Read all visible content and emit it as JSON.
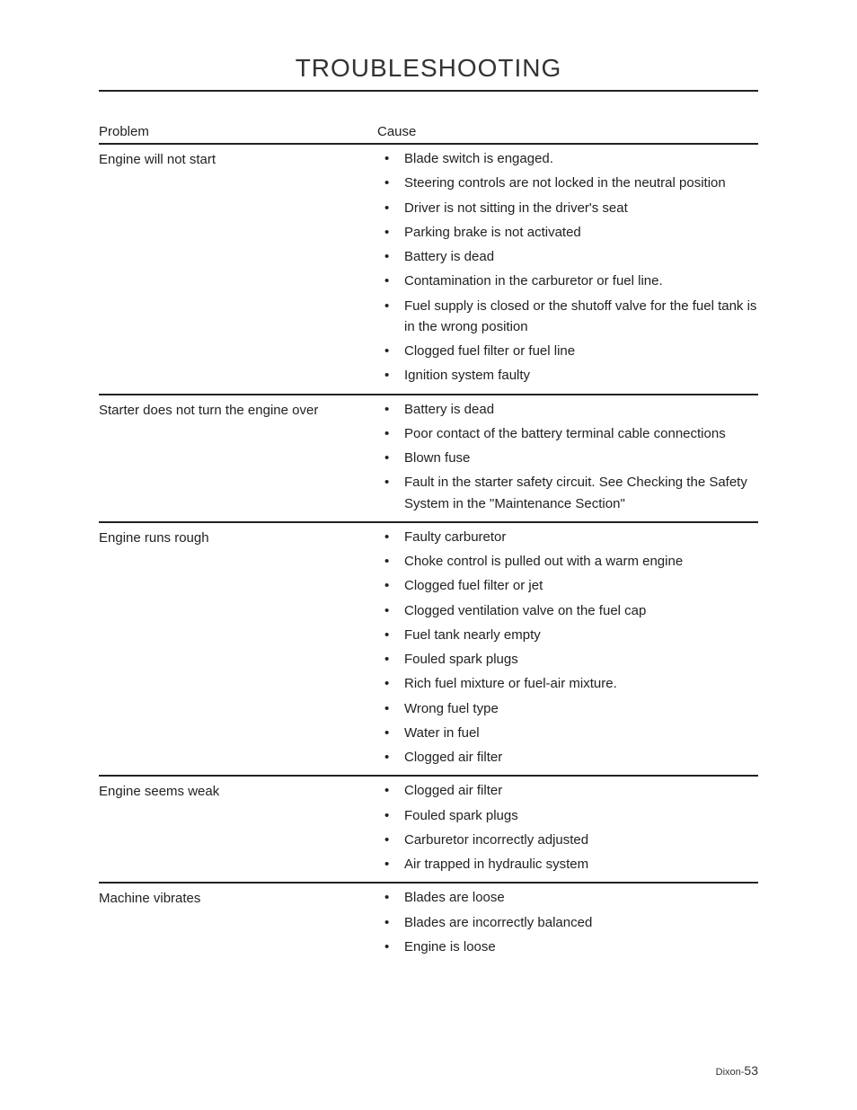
{
  "page": {
    "title": "TROUBLESHOOTING",
    "footer_prefix": "Dixon-",
    "footer_page": "53",
    "headers": {
      "problem": "Problem",
      "cause": "Cause"
    },
    "sections": [
      {
        "problem": "Engine will not start",
        "causes": [
          "Blade switch is engaged.",
          "Steering controls are not locked in the neutral position",
          "Driver is not sitting in the driver's seat",
          "Parking brake is not activated",
          "Battery is dead",
          "Contamination in the carburetor or fuel line.",
          "Fuel supply is closed or the shutoff valve for the fuel tank is in the wrong position",
          "Clogged fuel filter or fuel line",
          "Ignition system faulty"
        ]
      },
      {
        "problem": "Starter does not turn the engine over",
        "causes": [
          "Battery is dead",
          "Poor contact of the battery terminal cable connections",
          "Blown fuse",
          "Fault in the starter safety circuit. See Checking the Safety System in the \"Maintenance Section\""
        ]
      },
      {
        "problem": "Engine runs rough",
        "causes": [
          "Faulty carburetor",
          "Choke control is pulled out with a warm engine",
          "Clogged fuel filter or jet",
          "Clogged ventilation valve on the fuel cap",
          "Fuel tank nearly empty",
          "Fouled spark plugs",
          "Rich fuel mixture or fuel-air mixture.",
          "Wrong fuel type",
          "Water in fuel",
          "Clogged air filter"
        ]
      },
      {
        "problem": "Engine seems weak",
        "causes": [
          "Clogged air filter",
          "Fouled spark plugs",
          "Carburetor incorrectly adjusted",
          "Air trapped in hydraulic system"
        ]
      },
      {
        "problem": "Machine vibrates",
        "causes": [
          "Blades are loose",
          "Blades are incorrectly balanced",
          "Engine is loose"
        ]
      }
    ],
    "style": {
      "background_color": "#ffffff",
      "text_color": "#222222",
      "rule_color": "#222222",
      "title_fontsize": 28,
      "body_fontsize": 15,
      "footer_fontsize": 11
    }
  }
}
